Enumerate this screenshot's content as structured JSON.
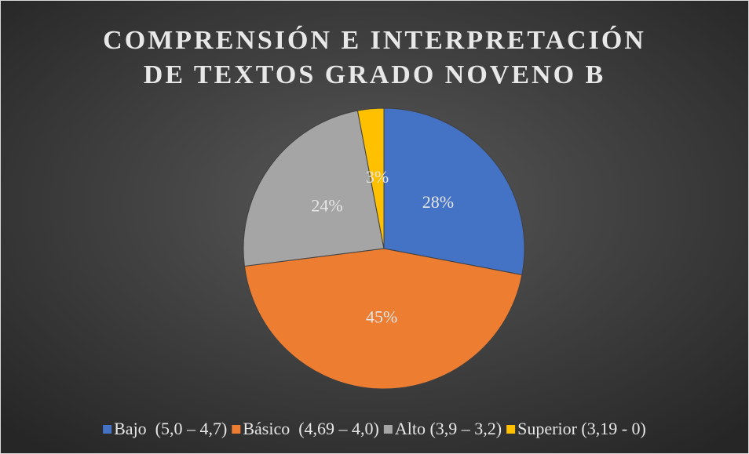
{
  "chart_data": {
    "type": "pie",
    "title": "COMPRENSIÓN E INTERPRETACIÓN DE TEXTOS GRADO NOVENO B",
    "categories": [
      "Bajo  (5,0 – 4,7)",
      "Básico  (4,69 – 4,0)",
      "Alto (3,9 – 3,2)",
      "Superior (3,19 - 0)"
    ],
    "values": [
      28,
      45,
      24,
      3
    ],
    "value_labels": [
      "28%",
      "45%",
      "24%",
      "3%"
    ],
    "colors": [
      "#4472c4",
      "#ed7d31",
      "#a5a5a5",
      "#ffc000"
    ],
    "legend": "bottom"
  }
}
